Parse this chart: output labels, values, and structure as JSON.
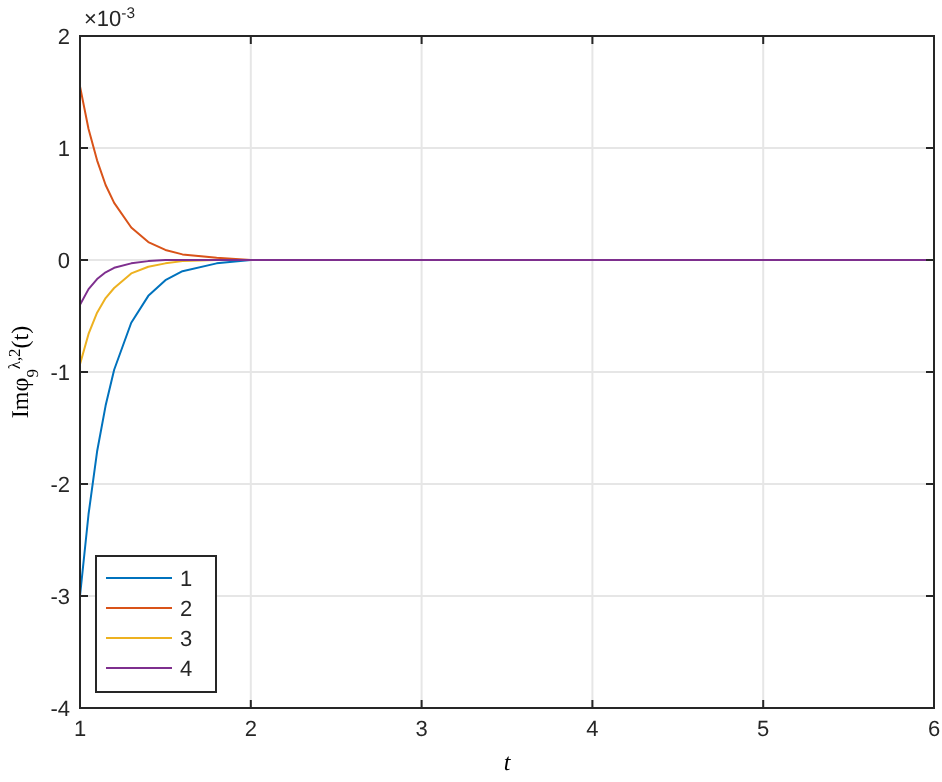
{
  "chart_data": {
    "type": "line",
    "xlabel": "t",
    "ylabel": "Imφ$_{9}$$^{λ,2}$(t)",
    "annotations": [
      "×10$^{-3}$"
    ],
    "x": [
      1,
      1.05,
      1.1,
      1.15,
      1.2,
      1.3,
      1.4,
      1.5,
      1.6,
      1.8,
      2,
      3,
      4,
      5,
      6
    ],
    "series": [
      {
        "name": "1",
        "color": "#0072bd",
        "x": [
          1,
          1.05,
          1.1,
          1.15,
          1.2,
          1.3,
          1.4,
          1.5,
          1.6,
          1.8,
          2
        ],
        "values": [
          -3,
          -2.27,
          -1.71,
          -1.3,
          -0.98,
          -0.56,
          -0.32,
          -0.18,
          -0.1,
          -0.03,
          0
        ]
      },
      {
        "name": "2",
        "color": "#d95319",
        "x": [
          1,
          1.05,
          1.1,
          1.15,
          1.2,
          1.3,
          1.4,
          1.5,
          1.6,
          1.8,
          2
        ],
        "values": [
          1.55,
          1.17,
          0.89,
          0.67,
          0.51,
          0.29,
          0.16,
          0.09,
          0.05,
          0.02,
          0
        ]
      },
      {
        "name": "3",
        "color": "#edb120",
        "x": [
          1,
          1.05,
          1.1,
          1.15,
          1.2,
          1.3,
          1.4,
          1.5,
          1.6,
          1.8,
          2
        ],
        "values": [
          -0.93,
          -0.66,
          -0.47,
          -0.34,
          -0.25,
          -0.12,
          -0.06,
          -0.03,
          -0.01,
          0,
          0
        ]
      },
      {
        "name": "4",
        "color": "#7e2f8e",
        "values": [
          -0.4,
          -0.26,
          -0.17,
          -0.11,
          -0.07,
          -0.03,
          -0.01,
          0,
          0,
          0,
          0,
          0,
          0,
          0,
          0
        ]
      }
    ],
    "xlim": [
      1,
      6
    ],
    "ylim": [
      -4,
      2
    ],
    "xticks": [
      1,
      2,
      3,
      4,
      5,
      6
    ],
    "yticks": [
      -4,
      -3,
      -2,
      -1,
      0,
      1,
      2
    ],
    "grid": true,
    "legend": "bottom left",
    "marker": "none",
    "line_style": "solid"
  }
}
